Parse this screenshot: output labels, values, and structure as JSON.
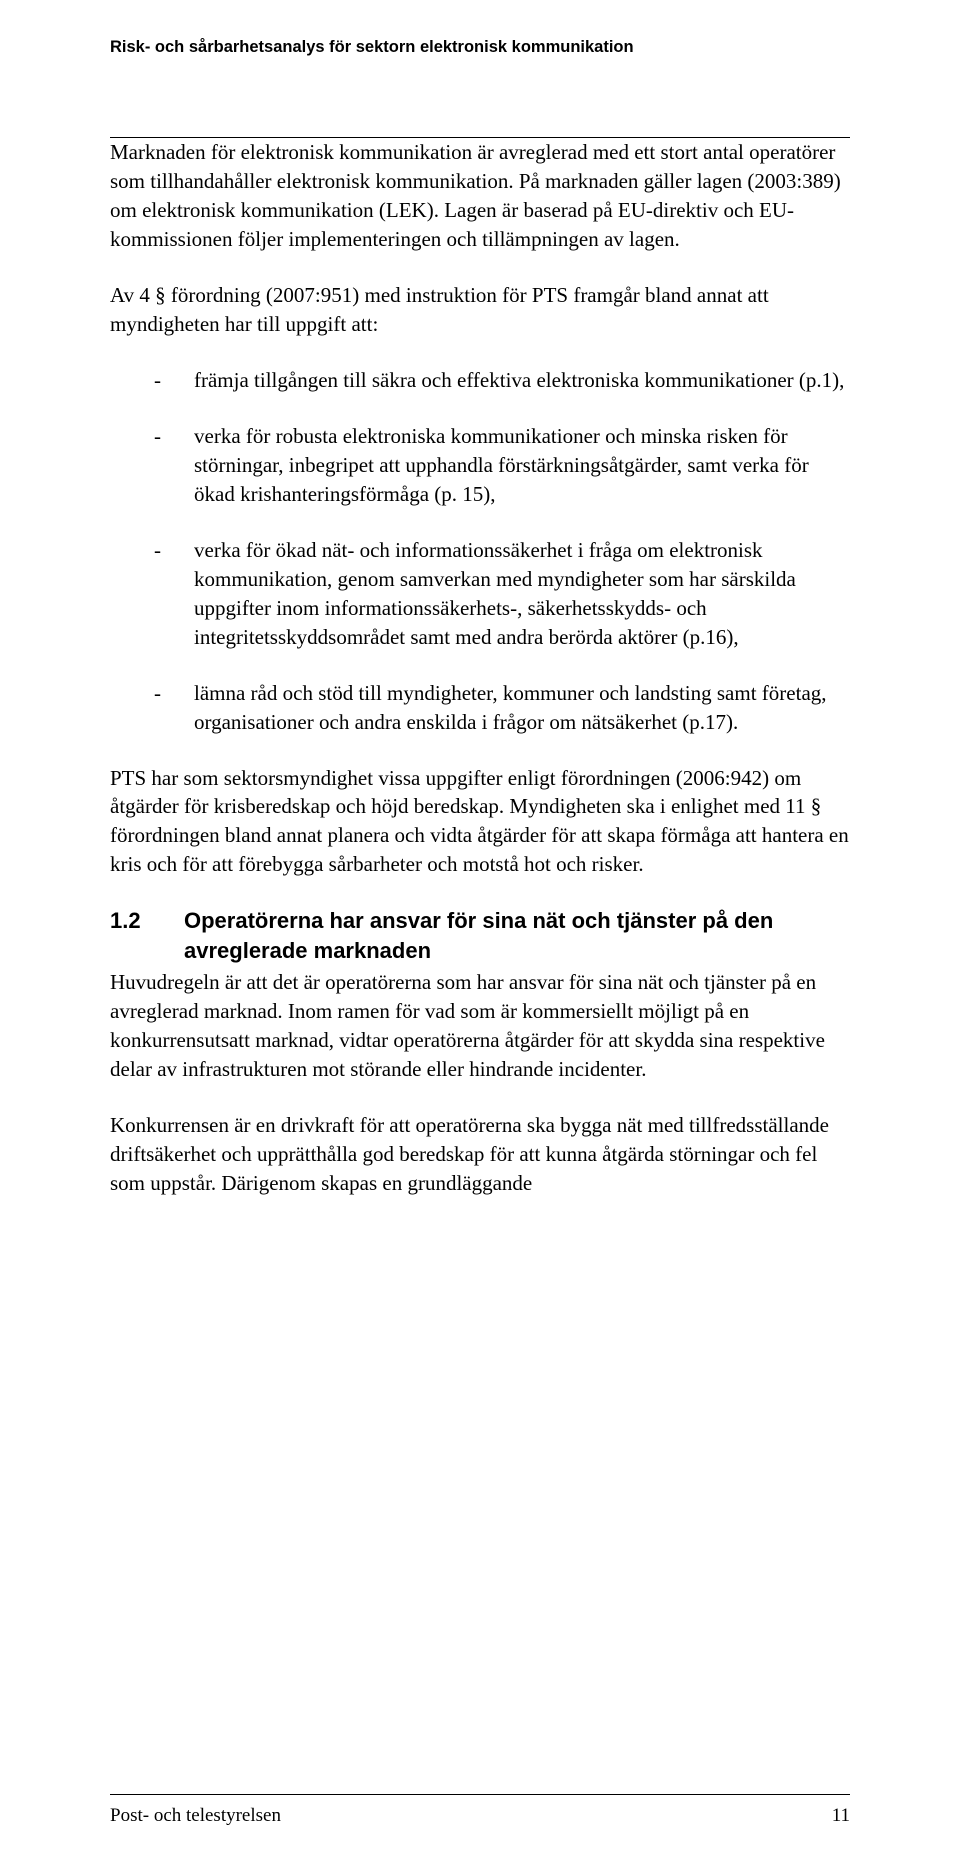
{
  "header": {
    "running_title": "Risk- och sårbarhetsanalys för sektorn elektronisk kommunikation"
  },
  "content": {
    "para_intro": "Marknaden för elektronisk kommunikation är avreglerad med ett stort antal operatörer som tillhandahåller elektronisk kommunikation. På marknaden gäller lagen (2003:389) om elektronisk kommunikation (LEK). Lagen är baserad på EU-direktiv och EU-kommissionen följer implementeringen och tillämpningen av lagen.",
    "para_task_intro": "Av 4 § förordning (2007:951) med instruktion för PTS framgår bland annat att myndigheten har till uppgift att:",
    "bullets": [
      "främja tillgången till säkra och effektiva elektroniska kommunikationer (p.1),",
      "verka för robusta elektroniska kommunikationer och minska risken för störningar, inbegripet att upphandla förstärkningsåtgärder, samt verka för ökad krishanteringsförmåga (p. 15),",
      "verka för ökad nät- och informationssäkerhet i fråga om elektronisk kommunikation, genom samverkan med myndigheter som har särskilda uppgifter inom informationssäkerhets-, säkerhetsskydds- och integritetsskyddsområdet samt med andra berörda aktörer (p.16),",
      "lämna råd och stöd till myndigheter, kommuner och landsting samt företag, organisationer och andra enskilda i frågor om nätsäkerhet (p.17)."
    ],
    "para_pts": "PTS har som sektorsmyndighet vissa uppgifter enligt förordningen (2006:942) om åtgärder för krisberedskap och höjd beredskap. Myndigheten ska i enlighet med 11 § förordningen bland annat planera och vidta åtgärder för att skapa förmåga att hantera en kris och för att förebygga sårbarheter och motstå hot och risker.",
    "section_1_2": {
      "number": "1.2",
      "title": "Operatörerna har ansvar för sina nät och tjänster på den avreglerade marknaden"
    },
    "para_1_2_a": "Huvudregeln är att det är operatörerna som har ansvar för sina nät och tjänster på en avreglerad marknad. Inom ramen för vad som är kommersiellt möjligt på en konkurrensutsatt marknad, vidtar operatörerna åtgärder för att skydda sina respektive delar av infrastrukturen mot störande eller hindrande incidenter.",
    "para_1_2_b": "Konkurrensen är en drivkraft för att operatörerna ska bygga nät med tillfredsställande driftsäkerhet och upprätthålla god beredskap för att kunna åtgärda störningar och fel som uppstår. Därigenom skapas en grundläggande"
  },
  "footer": {
    "publisher": "Post- och telestyrelsen",
    "page_number": "11"
  }
}
